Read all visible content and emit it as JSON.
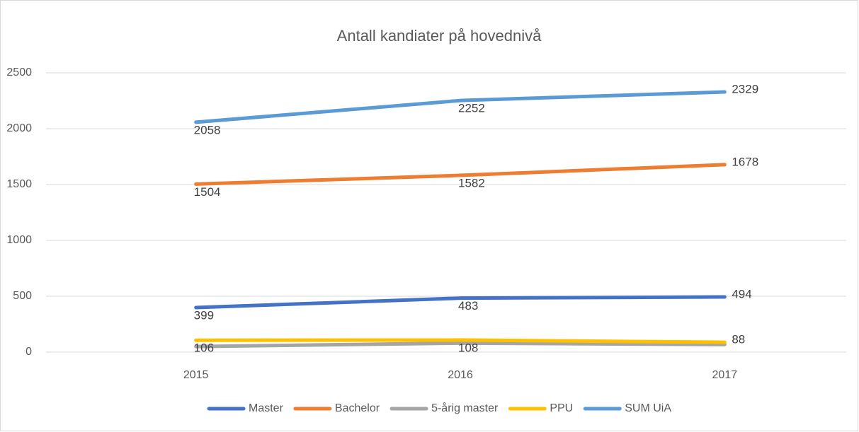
{
  "chart_data": {
    "type": "line",
    "title": "Antall kandiater på hovednivå",
    "categories": [
      "2015",
      "2016",
      "2017"
    ],
    "series": [
      {
        "name": "Master",
        "color": "#4472c4",
        "values": [
          399,
          483,
          494
        ],
        "data_labels": true
      },
      {
        "name": "Bachelor",
        "color": "#ed7d31",
        "values": [
          1504,
          1582,
          1678
        ],
        "data_labels": true
      },
      {
        "name": "5-årig master",
        "color": "#a5a5a5",
        "values": [
          50,
          80,
          68
        ],
        "data_labels": false
      },
      {
        "name": "PPU",
        "color": "#ffc000",
        "values": [
          106,
          108,
          88
        ],
        "data_labels": true
      },
      {
        "name": "SUM UiA",
        "color": "#5b9bd5",
        "values": [
          2058,
          2252,
          2329
        ],
        "data_labels": true
      }
    ],
    "ylim": [
      0,
      2500
    ],
    "yticks": [
      0,
      500,
      1000,
      1500,
      2000,
      2500
    ],
    "grid": true,
    "legend": "bottom"
  }
}
